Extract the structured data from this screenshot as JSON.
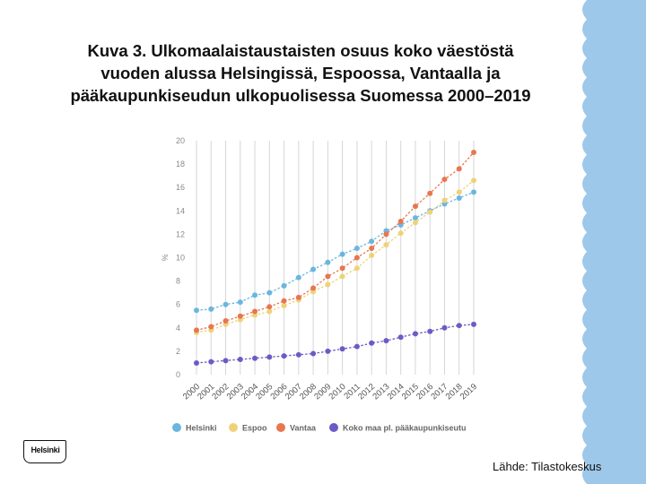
{
  "slide": {
    "title_lines": [
      "Kuva 3. Ulkomaalaistaustaisten osuus koko väestöstä",
      "vuoden alussa Helsingissä, Espoossa, Vantaalla ja",
      "pääkaupunkiseudun ulkopuolisessa Suomessa 2000–2019"
    ],
    "source": "Lähde: Tilastokeskus",
    "logo_text": "Helsinki",
    "accent_color": "#9dc8ea"
  },
  "chart_data": {
    "type": "line",
    "title": "",
    "xlabel": "",
    "ylabel": "%",
    "ylim": [
      0,
      20
    ],
    "yticks": [
      0,
      2,
      4,
      6,
      8,
      10,
      12,
      14,
      16,
      18,
      20
    ],
    "grid": "vertical",
    "legend_position": "bottom",
    "categories": [
      "2000",
      "2001",
      "2002",
      "2003",
      "2004",
      "2005",
      "2006",
      "2007",
      "2008",
      "2009",
      "2010",
      "2011",
      "2012",
      "2013",
      "2014",
      "2015",
      "2016",
      "2017",
      "2018",
      "2019"
    ],
    "series": [
      {
        "name": "Helsinki",
        "color": "#6bb6df",
        "values": [
          5.5,
          5.6,
          6.0,
          6.2,
          6.8,
          7.0,
          7.6,
          8.3,
          9.0,
          9.6,
          10.3,
          10.8,
          11.4,
          12.3,
          12.8,
          13.4,
          14.0,
          14.6,
          15.1,
          15.6
        ]
      },
      {
        "name": "Espoo",
        "color": "#eed27a",
        "values": [
          3.6,
          3.8,
          4.3,
          4.7,
          5.1,
          5.4,
          5.9,
          6.4,
          7.1,
          7.7,
          8.4,
          9.1,
          10.2,
          11.1,
          12.1,
          13.0,
          13.9,
          14.9,
          15.6,
          16.6
        ]
      },
      {
        "name": "Vantaa",
        "color": "#e8764e",
        "values": [
          3.8,
          4.1,
          4.6,
          5.0,
          5.4,
          5.8,
          6.3,
          6.6,
          7.4,
          8.4,
          9.1,
          10.0,
          10.8,
          12.0,
          13.1,
          14.4,
          15.5,
          16.7,
          17.6,
          19.0
        ]
      },
      {
        "name": "Koko maa pl. pääkaupunkiseutu",
        "color": "#6b5bc6",
        "values": [
          1.0,
          1.1,
          1.2,
          1.3,
          1.4,
          1.5,
          1.6,
          1.7,
          1.8,
          2.0,
          2.2,
          2.4,
          2.7,
          2.9,
          3.2,
          3.5,
          3.7,
          4.0,
          4.2,
          4.3
        ]
      }
    ]
  }
}
